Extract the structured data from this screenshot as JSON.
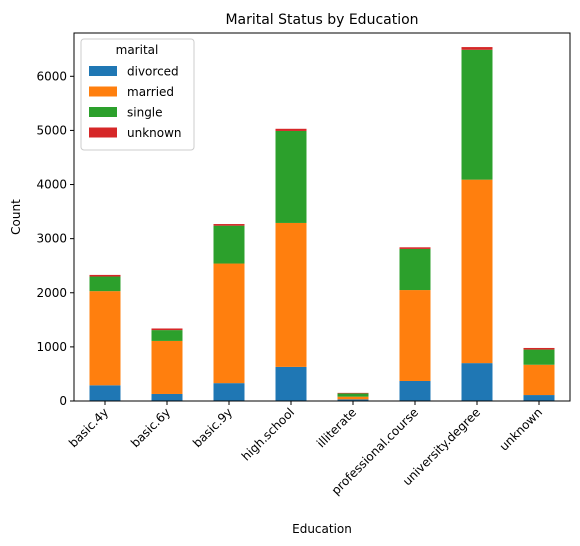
{
  "chart_data": {
    "type": "bar",
    "stacked": true,
    "title": "Marital Status by Education",
    "xlabel": "Education",
    "ylabel": "Count",
    "categories": [
      "basic.4y",
      "basic.6y",
      "basic.9y",
      "high.school",
      "illiterate",
      "professional.course",
      "university.degree",
      "unknown"
    ],
    "series": [
      {
        "name": "divorced",
        "color": "#1f77b4",
        "values": [
          290,
          130,
          330,
          630,
          30,
          370,
          700,
          110
        ]
      },
      {
        "name": "married",
        "color": "#ff7f0e",
        "values": [
          1740,
          980,
          2210,
          2660,
          50,
          1680,
          3390,
          560
        ]
      },
      {
        "name": "single",
        "color": "#2ca02c",
        "values": [
          270,
          200,
          700,
          1700,
          60,
          760,
          2400,
          280
        ]
      },
      {
        "name": "unknown",
        "color": "#d62728",
        "values": [
          30,
          30,
          30,
          40,
          10,
          30,
          50,
          30
        ]
      }
    ],
    "ylim": [
      0,
      6800
    ],
    "yticks": [
      0,
      1000,
      2000,
      3000,
      4000,
      5000,
      6000
    ],
    "grid": false,
    "legend": {
      "title": "marital",
      "position": "top-left"
    }
  }
}
